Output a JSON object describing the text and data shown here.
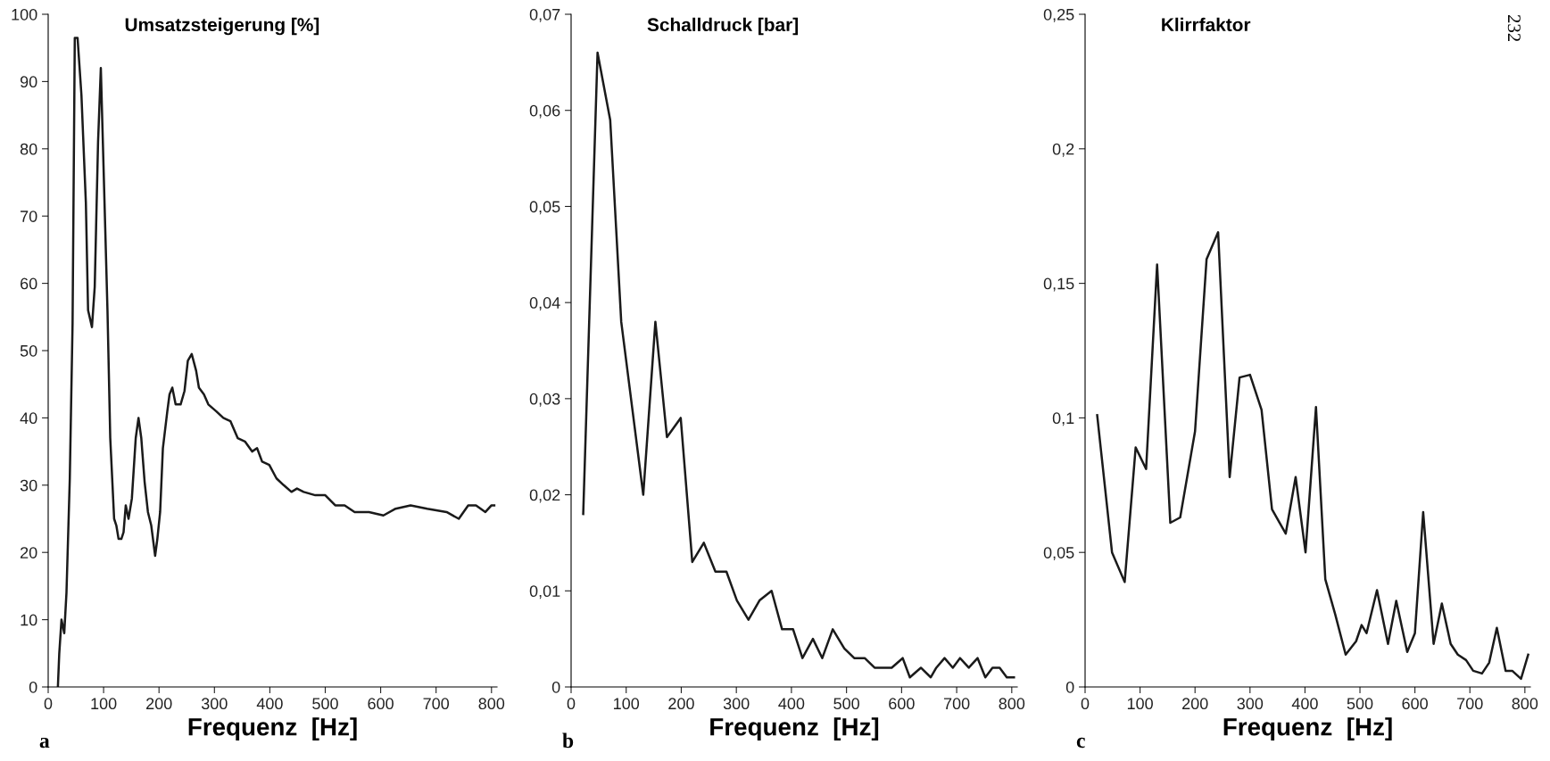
{
  "chart_data": [
    {
      "type": "line",
      "title": "Umsatzsteigerung [%]",
      "xlabel": "Frequenz  [Hz]",
      "color": "#1a1a1a",
      "x": [
        17.5,
        20,
        24,
        29,
        33,
        39,
        44,
        48,
        53,
        60,
        63,
        68,
        72,
        79,
        84,
        90,
        95,
        98,
        107,
        112,
        119,
        123,
        127,
        132,
        136,
        140,
        145,
        151,
        158,
        163,
        168,
        174,
        180,
        186,
        193,
        197,
        202,
        207,
        215,
        219,
        224,
        230,
        239,
        246,
        252,
        259,
        267,
        272,
        281,
        289,
        303,
        316,
        329,
        342,
        355,
        368,
        377,
        386,
        399,
        412,
        425,
        439,
        449,
        461,
        482,
        500,
        518,
        535,
        553,
        579,
        605,
        627,
        654,
        684,
        719,
        741,
        758,
        772,
        789,
        800,
        805
      ],
      "values": [
        0,
        5,
        10,
        8,
        14,
        31,
        54,
        96.5,
        96.5,
        88,
        82,
        72,
        56,
        53.5,
        59.5,
        81,
        92,
        83,
        56,
        37,
        25,
        24,
        22,
        22,
        23,
        27,
        25,
        28,
        37,
        40,
        37,
        30.5,
        26,
        24,
        19.5,
        22,
        26,
        35.5,
        41,
        43.5,
        44.5,
        42,
        42,
        44,
        48.5,
        49.5,
        47,
        44.5,
        43.5,
        42,
        41,
        40,
        39.5,
        37,
        36.5,
        35,
        35.5,
        33.5,
        33,
        31,
        30,
        29,
        29.5,
        29,
        28.5,
        28.5,
        27,
        27,
        26,
        26,
        25.5,
        26.5,
        27,
        26.5,
        26,
        25,
        27,
        27,
        26,
        27,
        27
      ],
      "xlim": [
        0,
        810
      ],
      "xticks": [
        0,
        100,
        200,
        300,
        400,
        500,
        600,
        700,
        800
      ],
      "ylim": [
        0,
        100
      ],
      "yticks": [
        0,
        10,
        20,
        30,
        40,
        50,
        60,
        70,
        80,
        90,
        100
      ],
      "annotations": [
        "a"
      ]
    },
    {
      "type": "line",
      "title": "Schalldruck [bar]",
      "xlabel": "Frequenz  [Hz]",
      "color": "#1a1a1a",
      "x": [
        22,
        48,
        71,
        91,
        111,
        131,
        153,
        174,
        199,
        220,
        241,
        262,
        282,
        301,
        322,
        342,
        364,
        383,
        403,
        420,
        439,
        456,
        475,
        496,
        514,
        533,
        551,
        567,
        582,
        602,
        615,
        635,
        653,
        663,
        678,
        693,
        706,
        722,
        738,
        752,
        765,
        778,
        791,
        804
      ],
      "values": [
        0.018,
        0.066,
        0.059,
        0.038,
        0.029,
        0.02,
        0.038,
        0.026,
        0.028,
        0.013,
        0.015,
        0.012,
        0.012,
        0.009,
        0.007,
        0.009,
        0.01,
        0.006,
        0.006,
        0.003,
        0.005,
        0.003,
        0.006,
        0.004,
        0.003,
        0.003,
        0.002,
        0.002,
        0.002,
        0.003,
        0.001,
        0.002,
        0.001,
        0.002,
        0.003,
        0.002,
        0.003,
        0.002,
        0.003,
        0.001,
        0.002,
        0.002,
        0.001,
        0.001
      ],
      "xlim": [
        0,
        810
      ],
      "xticks": [
        0,
        100,
        200,
        300,
        400,
        500,
        600,
        700,
        800
      ],
      "ylim": [
        0,
        0.07
      ],
      "yticks": [
        {
          "value": 0,
          "label": "0"
        },
        {
          "value": 0.01,
          "label": "0,01"
        },
        {
          "value": 0.02,
          "label": "0,02"
        },
        {
          "value": 0.03,
          "label": "0,03"
        },
        {
          "value": 0.04,
          "label": "0,04"
        },
        {
          "value": 0.05,
          "label": "0,05"
        },
        {
          "value": 0.06,
          "label": "0,06"
        },
        {
          "value": 0.07,
          "label": "0,07"
        }
      ],
      "annotations": [
        "b"
      ]
    },
    {
      "type": "line",
      "title": "Klirrfaktor",
      "xlabel": "Frequenz  [Hz]",
      "color": "#1a1a1a",
      "x": [
        22,
        49,
        72,
        92,
        111,
        131,
        155,
        173,
        200,
        221,
        242,
        263,
        281,
        300,
        321,
        340,
        365,
        383,
        401,
        420,
        437,
        455,
        474,
        493,
        503,
        512,
        531,
        551,
        566,
        586,
        600,
        615,
        634,
        649,
        665,
        678,
        693,
        706,
        722,
        735,
        749,
        765,
        777,
        793,
        806
      ],
      "values": [
        0.101,
        0.05,
        0.039,
        0.089,
        0.081,
        0.157,
        0.061,
        0.063,
        0.095,
        0.159,
        0.169,
        0.078,
        0.115,
        0.116,
        0.103,
        0.066,
        0.057,
        0.078,
        0.05,
        0.104,
        0.04,
        0.027,
        0.012,
        0.017,
        0.023,
        0.02,
        0.036,
        0.016,
        0.032,
        0.013,
        0.02,
        0.065,
        0.016,
        0.031,
        0.016,
        0.012,
        0.01,
        0.006,
        0.005,
        0.009,
        0.022,
        0.006,
        0.006,
        0.003,
        0.012
      ],
      "xlim": [
        0,
        810
      ],
      "xticks": [
        0,
        100,
        200,
        300,
        400,
        500,
        600,
        700,
        800
      ],
      "ylim": [
        0,
        0.25
      ],
      "yticks": [
        {
          "value": 0,
          "label": "0"
        },
        {
          "value": 0.05,
          "label": "0,05"
        },
        {
          "value": 0.1,
          "label": "0,1"
        },
        {
          "value": 0.15,
          "label": "0,15"
        },
        {
          "value": 0.2,
          "label": "0,2"
        },
        {
          "value": 0.25,
          "label": "0,25"
        }
      ],
      "annotations": [
        "c",
        "232"
      ]
    }
  ]
}
